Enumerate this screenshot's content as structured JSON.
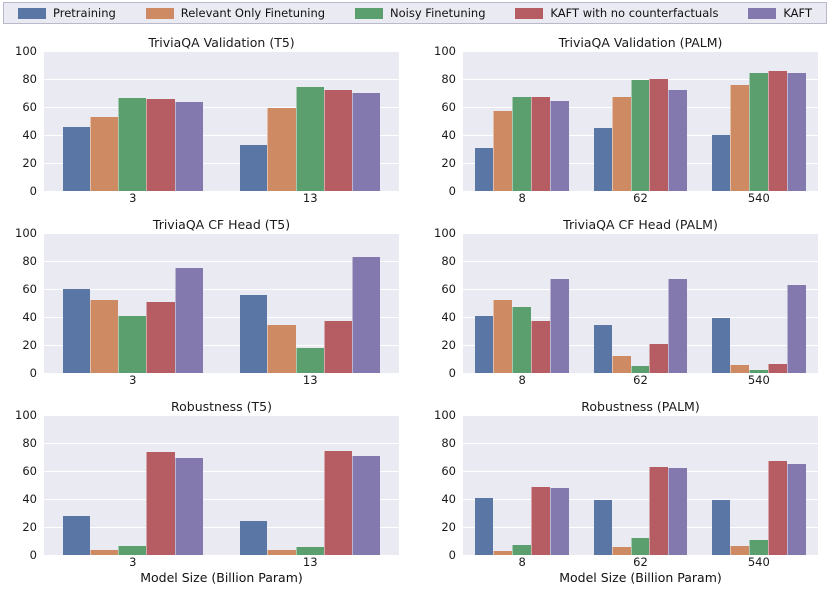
{
  "legend": {
    "items": [
      {
        "label": "Pretraining",
        "color": "#5A76A5"
      },
      {
        "label": "Relevant Only Finetuning",
        "color": "#CE8A63"
      },
      {
        "label": "Noisy Finetuning",
        "color": "#5C9F6F"
      },
      {
        "label": "KAFT with no counterfactuals",
        "color": "#B55D62"
      },
      {
        "label": "KAFT",
        "color": "#8379AE"
      }
    ]
  },
  "style": {
    "plot_background": "#EAEAF2",
    "grid_color": "#FFFFFF",
    "figure_background": "#FFFFFF"
  },
  "chart_data": [
    {
      "type": "bar",
      "title": "TriviaQA Validation (T5)",
      "categories": [
        "3",
        "13"
      ],
      "ylim": [
        0,
        100
      ],
      "yticks": [
        0,
        20,
        40,
        60,
        80,
        100
      ],
      "legend_position": "top",
      "grid": true,
      "series": [
        {
          "name": "Pretraining",
          "values": [
            45.5,
            33
          ]
        },
        {
          "name": "Relevant Only Finetuning",
          "values": [
            53,
            59
          ]
        },
        {
          "name": "Noisy Finetuning",
          "values": [
            66.5,
            74.5
          ]
        },
        {
          "name": "KAFT with no counterfactuals",
          "values": [
            65.5,
            72.5
          ]
        },
        {
          "name": "KAFT",
          "values": [
            63.5,
            70
          ]
        }
      ]
    },
    {
      "type": "bar",
      "title": "TriviaQA Validation (PALM)",
      "categories": [
        "8",
        "62",
        "540"
      ],
      "ylim": [
        0,
        100
      ],
      "yticks": [
        0,
        20,
        40,
        60,
        80,
        100
      ],
      "grid": true,
      "series": [
        {
          "name": "Pretraining",
          "values": [
            31,
            45,
            40
          ]
        },
        {
          "name": "Relevant Only Finetuning",
          "values": [
            57,
            67.5,
            75.5
          ]
        },
        {
          "name": "Noisy Finetuning",
          "values": [
            67,
            79,
            84.5
          ]
        },
        {
          "name": "KAFT with no counterfactuals",
          "values": [
            67,
            80,
            85.5
          ]
        },
        {
          "name": "KAFT",
          "values": [
            64.5,
            72.5,
            84
          ]
        }
      ]
    },
    {
      "type": "bar",
      "title": "TriviaQA CF Head (T5)",
      "categories": [
        "3",
        "13"
      ],
      "ylim": [
        0,
        100
      ],
      "yticks": [
        0,
        20,
        40,
        60,
        80,
        100
      ],
      "grid": true,
      "series": [
        {
          "name": "Pretraining",
          "values": [
            60,
            56
          ]
        },
        {
          "name": "Relevant Only Finetuning",
          "values": [
            52,
            34
          ]
        },
        {
          "name": "Noisy Finetuning",
          "values": [
            41,
            18
          ]
        },
        {
          "name": "KAFT with no counterfactuals",
          "values": [
            51,
            37.5
          ]
        },
        {
          "name": "KAFT",
          "values": [
            75,
            83
          ]
        }
      ]
    },
    {
      "type": "bar",
      "title": "TriviaQA CF Head (PALM)",
      "categories": [
        "8",
        "62",
        "540"
      ],
      "ylim": [
        0,
        100
      ],
      "yticks": [
        0,
        20,
        40,
        60,
        80,
        100
      ],
      "grid": true,
      "series": [
        {
          "name": "Pretraining",
          "values": [
            40.5,
            34,
            39
          ]
        },
        {
          "name": "Relevant Only Finetuning",
          "values": [
            52,
            12.5,
            6
          ]
        },
        {
          "name": "Noisy Finetuning",
          "values": [
            47,
            5,
            2
          ]
        },
        {
          "name": "KAFT with no counterfactuals",
          "values": [
            37,
            20.5,
            6.5
          ]
        },
        {
          "name": "KAFT",
          "values": [
            67,
            67,
            63
          ]
        }
      ]
    },
    {
      "type": "bar",
      "title": "Robustness (T5)",
      "categories": [
        "3",
        "13"
      ],
      "xlabel": "Model Size (Billion Param)",
      "ylim": [
        0,
        100
      ],
      "yticks": [
        0,
        20,
        40,
        60,
        80,
        100
      ],
      "grid": true,
      "series": [
        {
          "name": "Pretraining",
          "values": [
            28,
            24
          ]
        },
        {
          "name": "Relevant Only Finetuning",
          "values": [
            3.5,
            3.5
          ]
        },
        {
          "name": "Noisy Finetuning",
          "values": [
            6.5,
            6
          ]
        },
        {
          "name": "KAFT with no counterfactuals",
          "values": [
            73.5,
            74.5
          ]
        },
        {
          "name": "KAFT",
          "values": [
            69,
            70.5
          ]
        }
      ]
    },
    {
      "type": "bar",
      "title": "Robustness (PALM)",
      "categories": [
        "8",
        "62",
        "540"
      ],
      "xlabel": "Model Size (Billion Param)",
      "ylim": [
        0,
        100
      ],
      "yticks": [
        0,
        20,
        40,
        60,
        80,
        100
      ],
      "grid": true,
      "series": [
        {
          "name": "Pretraining",
          "values": [
            40.5,
            39.5,
            39.5
          ]
        },
        {
          "name": "Relevant Only Finetuning",
          "values": [
            3,
            6,
            6.5
          ]
        },
        {
          "name": "Noisy Finetuning",
          "values": [
            7,
            12,
            10.5
          ]
        },
        {
          "name": "KAFT with no counterfactuals",
          "values": [
            48.5,
            63,
            67
          ]
        },
        {
          "name": "KAFT",
          "values": [
            48,
            62,
            65
          ]
        }
      ]
    }
  ]
}
